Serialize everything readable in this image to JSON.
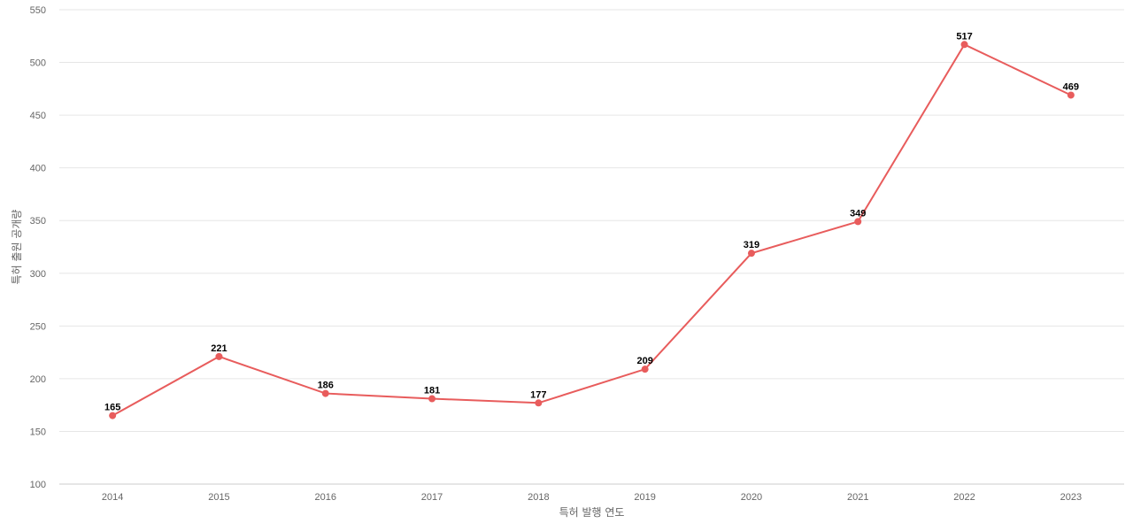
{
  "chart_data": {
    "type": "line",
    "x": [
      "2014",
      "2015",
      "2016",
      "2017",
      "2018",
      "2019",
      "2020",
      "2021",
      "2022",
      "2023"
    ],
    "series": [
      {
        "values": [
          165,
          221,
          186,
          181,
          177,
          209,
          319,
          349,
          517,
          469
        ],
        "color": "#e85c5c"
      }
    ],
    "y_ticks": [
      "100",
      "150",
      "200",
      "250",
      "300",
      "350",
      "400",
      "450",
      "500",
      "550"
    ],
    "ylim": [
      100,
      550
    ],
    "xlabel": "특허 발행 연도",
    "ylabel": "특허 출원 공개량",
    "grid": true,
    "data_labels": true
  }
}
